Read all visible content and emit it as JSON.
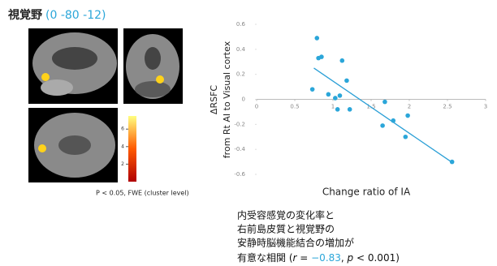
{
  "brain_panel": {
    "title": "視覚野",
    "coords": "(0 -80 -12)",
    "colorbar": {
      "lim": [
        0,
        7.5
      ],
      "ticks": [
        2,
        4,
        6
      ]
    },
    "note": "P < 0.05, FWE (cluster level)"
  },
  "chart_data": {
    "type": "scatter",
    "x_label": "Change ratio of IA",
    "y_label": [
      "ΔRSFC",
      "from Rt AI to Visual cortex"
    ],
    "x": [
      0.79,
      0.85,
      0.81,
      0.73,
      1.12,
      1.18,
      0.94,
      1.03,
      1.09,
      1.06,
      1.22,
      1.68,
      1.65,
      1.79,
      1.98,
      1.95,
      2.56
    ],
    "values": [
      0.49,
      0.34,
      0.33,
      0.08,
      0.31,
      0.15,
      0.04,
      0.01,
      0.03,
      -0.08,
      -0.08,
      -0.02,
      -0.21,
      -0.17,
      -0.13,
      -0.3,
      -0.5
    ],
    "color": "#2ba6d9",
    "trendline": {
      "x": [
        0.75,
        2.55
      ],
      "y": [
        0.25,
        -0.5
      ],
      "color": "#2a9fd6"
    },
    "xlim": [
      0,
      3
    ],
    "xticks": [
      0,
      0.5,
      1,
      1.5,
      2,
      2.5,
      3
    ],
    "ylim": [
      -0.6,
      0.6
    ],
    "yticks": [
      -0.6,
      -0.4,
      -0.2,
      0,
      0.2,
      0.4,
      0.6
    ]
  },
  "caption": {
    "lines": [
      "内受容感覚の変化率と",
      "右前島皮質と視覚野の",
      "安静時脳機能結合の増加が"
    ],
    "last": [
      "有意な相関 (",
      "r",
      " = ",
      "−0.83",
      ", ",
      "p",
      " < 0.001)"
    ]
  }
}
